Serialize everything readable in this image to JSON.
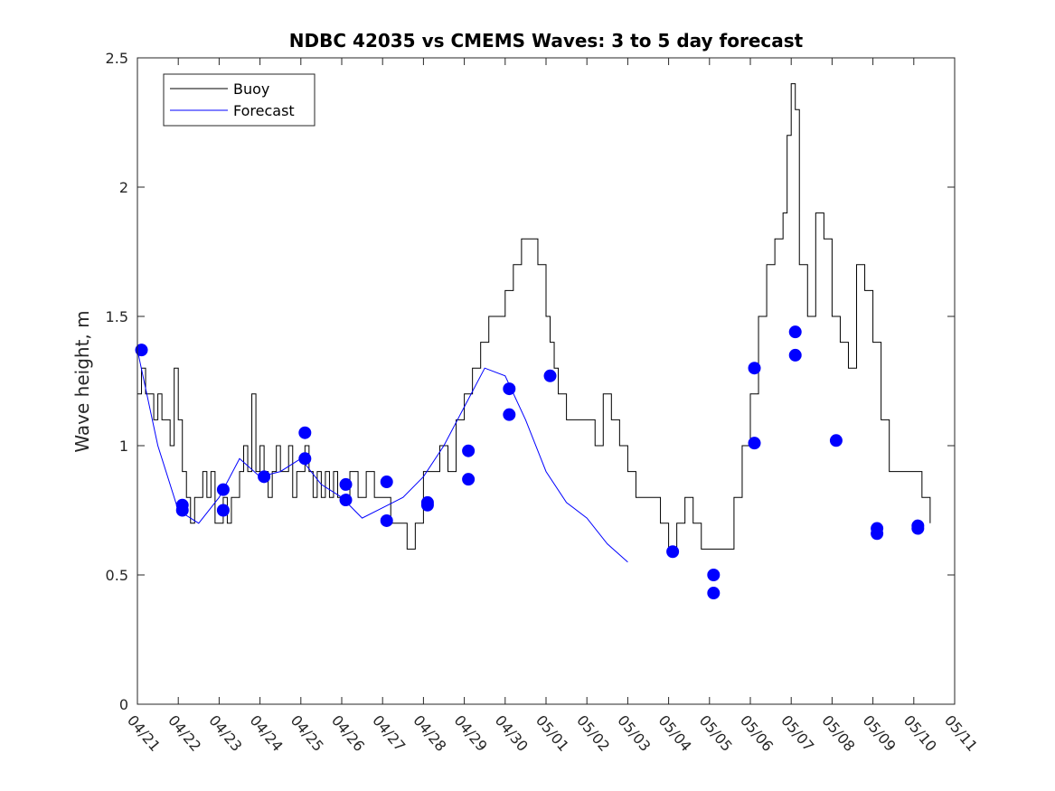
{
  "chart_data": {
    "type": "line",
    "title": "NDBC 42035 vs CMEMS Waves: 3 to 5 day forecast",
    "xlabel": "",
    "ylabel": "Wave height, m",
    "xlim": [
      0,
      20
    ],
    "ylim": [
      0,
      2.5
    ],
    "x_ticks": [
      "04/21",
      "04/22",
      "04/23",
      "04/24",
      "04/25",
      "04/26",
      "04/27",
      "04/28",
      "04/29",
      "04/30",
      "05/01",
      "05/02",
      "05/03",
      "05/04",
      "05/05",
      "05/06",
      "05/07",
      "05/08",
      "05/09",
      "05/10",
      "05/11"
    ],
    "y_ticks": [
      "0",
      "0.5",
      "1",
      "1.5",
      "2",
      "2.5"
    ],
    "grid": false,
    "legend": {
      "position": "top-left",
      "entries": [
        "Buoy",
        "Forecast"
      ]
    },
    "colors": {
      "buoy": "#000000",
      "forecast": "#0000ff"
    },
    "series": [
      {
        "name": "Buoy",
        "x": [
          0,
          0.1,
          0.2,
          0.3,
          0.4,
          0.5,
          0.6,
          0.7,
          0.8,
          0.9,
          1.0,
          1.1,
          1.2,
          1.3,
          1.4,
          1.5,
          1.6,
          1.7,
          1.8,
          1.9,
          2.0,
          2.1,
          2.2,
          2.3,
          2.4,
          2.5,
          2.6,
          2.7,
          2.8,
          2.9,
          3.0,
          3.1,
          3.2,
          3.3,
          3.4,
          3.5,
          3.6,
          3.7,
          3.8,
          3.9,
          4.0,
          4.1,
          4.2,
          4.3,
          4.4,
          4.5,
          4.6,
          4.7,
          4.8,
          4.9,
          5.0,
          5.2,
          5.4,
          5.6,
          5.8,
          6.0,
          6.2,
          6.4,
          6.6,
          6.8,
          7.0,
          7.2,
          7.4,
          7.6,
          7.8,
          8.0,
          8.2,
          8.4,
          8.6,
          8.8,
          9.0,
          9.2,
          9.4,
          9.6,
          9.8,
          10.0,
          10.1,
          10.2,
          10.3,
          10.4,
          10.5,
          10.6,
          10.8,
          11.0,
          11.2,
          11.4,
          11.6,
          11.8,
          12.0,
          12.2,
          12.4,
          12.6,
          12.8,
          13.0,
          13.2,
          13.4,
          13.6,
          13.8,
          14.0,
          14.2,
          14.4,
          14.6,
          14.8,
          15.0,
          15.2,
          15.4,
          15.6,
          15.8,
          15.9,
          16.0,
          16.1,
          16.2,
          16.4,
          16.6,
          16.8,
          17.0,
          17.2,
          17.4,
          17.6,
          17.8,
          18.0,
          18.2,
          18.4,
          18.6,
          18.8,
          19.0,
          19.2,
          19.4
        ],
        "y": [
          1.2,
          1.3,
          1.2,
          1.2,
          1.1,
          1.2,
          1.1,
          1.1,
          1.0,
          1.3,
          1.1,
          0.9,
          0.8,
          0.7,
          0.8,
          0.8,
          0.9,
          0.8,
          0.9,
          0.7,
          0.7,
          0.8,
          0.7,
          0.8,
          0.8,
          0.9,
          1.0,
          0.9,
          1.2,
          0.9,
          1.0,
          0.9,
          0.8,
          0.9,
          1.0,
          0.9,
          0.9,
          1.0,
          0.8,
          0.9,
          0.9,
          1.0,
          0.9,
          0.8,
          0.9,
          0.8,
          0.9,
          0.8,
          0.9,
          0.8,
          0.8,
          0.9,
          0.8,
          0.9,
          0.8,
          0.8,
          0.7,
          0.7,
          0.6,
          0.7,
          0.9,
          0.9,
          1.0,
          0.9,
          1.1,
          1.2,
          1.3,
          1.4,
          1.5,
          1.5,
          1.6,
          1.7,
          1.8,
          1.8,
          1.7,
          1.5,
          1.4,
          1.3,
          1.2,
          1.2,
          1.1,
          1.1,
          1.1,
          1.1,
          1.0,
          1.2,
          1.1,
          1.0,
          0.9,
          0.8,
          0.8,
          0.8,
          0.7,
          0.6,
          0.7,
          0.8,
          0.7,
          0.6,
          0.6,
          0.6,
          0.6,
          0.8,
          1.0,
          1.2,
          1.5,
          1.7,
          1.8,
          1.9,
          2.2,
          2.4,
          2.3,
          1.7,
          1.5,
          1.9,
          1.8,
          1.5,
          1.4,
          1.3,
          1.7,
          1.6,
          1.4,
          1.1,
          0.9,
          0.9,
          0.9,
          0.9,
          0.8,
          0.7
        ],
        "note": ""
      },
      {
        "name": "Forecast",
        "x": [
          0,
          0.5,
          1.0,
          1.5,
          2.0,
          2.5,
          3.0,
          3.5,
          4.0,
          4.5,
          5.0,
          5.5,
          6.0,
          6.5,
          7.0,
          7.5,
          8.0,
          8.5,
          9.0,
          9.5,
          10.0,
          10.5,
          11.0,
          11.5,
          12.0
        ],
        "y": [
          1.37,
          1.0,
          0.75,
          0.7,
          0.8,
          0.95,
          0.88,
          0.9,
          0.95,
          0.85,
          0.8,
          0.72,
          0.76,
          0.8,
          0.88,
          1.0,
          1.15,
          1.3,
          1.27,
          1.1,
          0.9,
          0.78,
          0.72,
          0.62,
          0.55
        ]
      }
    ],
    "markers": {
      "x": [
        0.1,
        1.1,
        1.1,
        2.1,
        2.1,
        3.1,
        4.1,
        4.1,
        5.1,
        5.1,
        6.1,
        6.1,
        7.1,
        7.1,
        8.1,
        8.1,
        9.1,
        9.1,
        10.1,
        13.1,
        14.1,
        14.1,
        15.1,
        15.1,
        16.1,
        16.1,
        17.1,
        18.1,
        18.1,
        19.1,
        19.1
      ],
      "y": [
        1.37,
        0.77,
        0.75,
        0.83,
        0.75,
        0.88,
        1.05,
        0.95,
        0.85,
        0.79,
        0.86,
        0.71,
        0.78,
        0.77,
        0.98,
        0.87,
        1.22,
        1.12,
        1.27,
        0.59,
        0.5,
        0.43,
        1.3,
        1.01,
        1.44,
        1.35,
        1.02,
        0.68,
        0.66,
        0.69,
        0.68
      ]
    }
  }
}
